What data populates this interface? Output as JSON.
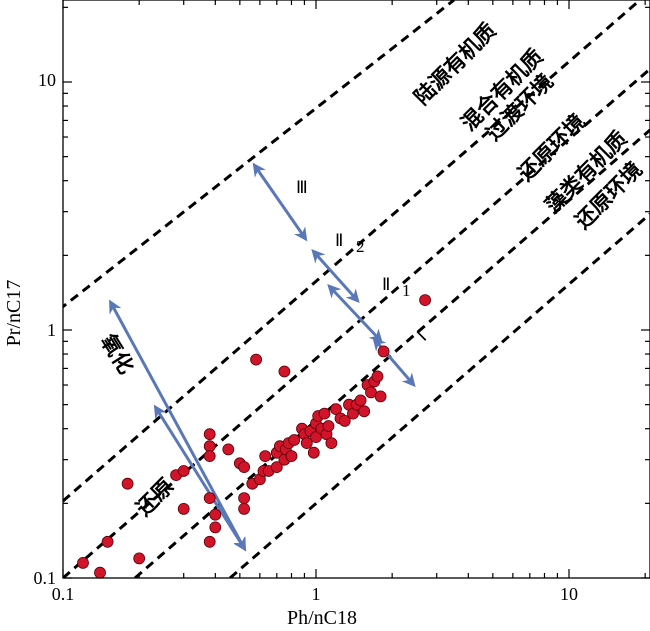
{
  "chart_data": {
    "type": "scatter",
    "title": "",
    "xlabel": "Ph/nC18",
    "ylabel": "Pr/nC17",
    "xscale": "log",
    "yscale": "log",
    "xlim": [
      0.1,
      20
    ],
    "ylim": [
      0.1,
      20
    ],
    "xticks": [
      "0.1",
      "1",
      "10"
    ],
    "yticks": [
      "0.1",
      "1",
      "10"
    ],
    "grid": false,
    "region_labels": [
      "陆源有机质",
      "混合有机质",
      "过渡环境",
      "还原环境",
      "藻类有机质",
      "还原环境"
    ],
    "zone_labels": [
      "Ⅲ",
      "Ⅱ",
      "2",
      "Ⅱ",
      "1",
      "Ⅰ"
    ],
    "annotations": [
      "氧化",
      "还原"
    ],
    "colors": {
      "points": "#d2142a",
      "arrows": "#5a78b8",
      "boundaries": "#000000"
    },
    "series": [
      {
        "points": [
          [
            0.12,
            0.115
          ],
          [
            0.14,
            0.105
          ],
          [
            0.15,
            0.14
          ],
          [
            0.18,
            0.24
          ],
          [
            0.2,
            0.12
          ],
          [
            0.28,
            0.26
          ],
          [
            0.3,
            0.27
          ],
          [
            0.3,
            0.19
          ],
          [
            0.38,
            0.38
          ],
          [
            0.38,
            0.34
          ],
          [
            0.38,
            0.31
          ],
          [
            0.38,
            0.21
          ],
          [
            0.4,
            0.16
          ],
          [
            0.4,
            0.18
          ],
          [
            0.38,
            0.14
          ],
          [
            0.45,
            0.33
          ],
          [
            0.5,
            0.29
          ],
          [
            0.52,
            0.28
          ],
          [
            0.52,
            0.21
          ],
          [
            0.52,
            0.19
          ],
          [
            0.56,
            0.24
          ],
          [
            0.58,
            0.76
          ],
          [
            0.6,
            0.25
          ],
          [
            0.62,
            0.27
          ],
          [
            0.63,
            0.31
          ],
          [
            0.65,
            0.27
          ],
          [
            0.7,
            0.32
          ],
          [
            0.7,
            0.28
          ],
          [
            0.72,
            0.34
          ],
          [
            0.75,
            0.68
          ],
          [
            0.75,
            0.3
          ],
          [
            0.76,
            0.33
          ],
          [
            0.78,
            0.35
          ],
          [
            0.8,
            0.31
          ],
          [
            0.82,
            0.36
          ],
          [
            0.88,
            0.4
          ],
          [
            0.9,
            0.38
          ],
          [
            0.92,
            0.35
          ],
          [
            0.95,
            0.39
          ],
          [
            0.98,
            0.32
          ],
          [
            1.0,
            0.42
          ],
          [
            1.0,
            0.37
          ],
          [
            1.02,
            0.45
          ],
          [
            1.05,
            0.4
          ],
          [
            1.08,
            0.46
          ],
          [
            1.1,
            0.38
          ],
          [
            1.12,
            0.41
          ],
          [
            1.15,
            0.35
          ],
          [
            1.2,
            0.48
          ],
          [
            1.25,
            0.44
          ],
          [
            1.3,
            0.43
          ],
          [
            1.35,
            0.5
          ],
          [
            1.4,
            0.46
          ],
          [
            1.45,
            0.5
          ],
          [
            1.5,
            0.52
          ],
          [
            1.55,
            0.47
          ],
          [
            1.6,
            0.6
          ],
          [
            1.65,
            0.56
          ],
          [
            1.7,
            0.62
          ],
          [
            1.75,
            0.65
          ],
          [
            1.8,
            0.54
          ],
          [
            1.85,
            0.82
          ],
          [
            2.7,
            1.32
          ]
        ]
      }
    ]
  }
}
